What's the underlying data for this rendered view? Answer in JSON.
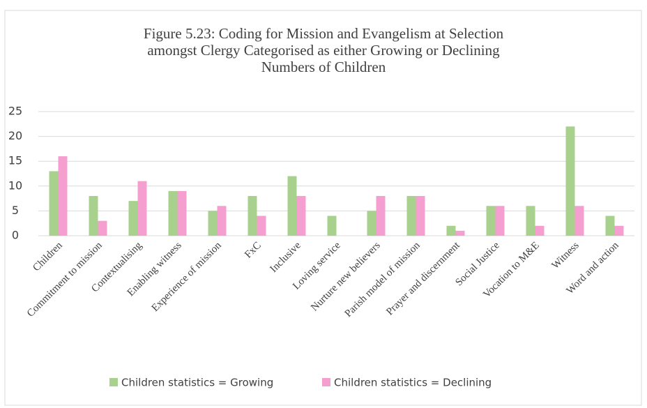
{
  "chart_data": {
    "type": "bar",
    "title": [
      "Figure 5.23: Coding for Mission and Evangelism at Selection",
      "amongst Clergy Categorised as either Growing  or Declining",
      "Numbers of Children"
    ],
    "categories": [
      "Children",
      "Commitment to mission",
      "Contextualising",
      "Enabling witness",
      "Experience of mission",
      "FxC",
      "Inclusive",
      "Loving service",
      "Nurture new believers",
      "Parish model of mission",
      "Prayer and discernment",
      "Social Justice",
      "Vocation to M&E",
      "Witness",
      "Word and action"
    ],
    "series": [
      {
        "name": "Children statistics = Growing",
        "color": "#a9d18e",
        "values": [
          13,
          8,
          7,
          9,
          5,
          8,
          12,
          4,
          5,
          8,
          2,
          6,
          6,
          22,
          4
        ]
      },
      {
        "name": "Children statistics = Declining",
        "color": "#f49fcf",
        "values": [
          16,
          3,
          11,
          9,
          6,
          4,
          8,
          0,
          8,
          8,
          1,
          6,
          2,
          6,
          2
        ]
      }
    ],
    "ylim": [
      0,
      25
    ],
    "yticks": [
      0,
      5,
      10,
      15,
      20,
      25
    ],
    "grid": true,
    "legend": "bottom"
  }
}
